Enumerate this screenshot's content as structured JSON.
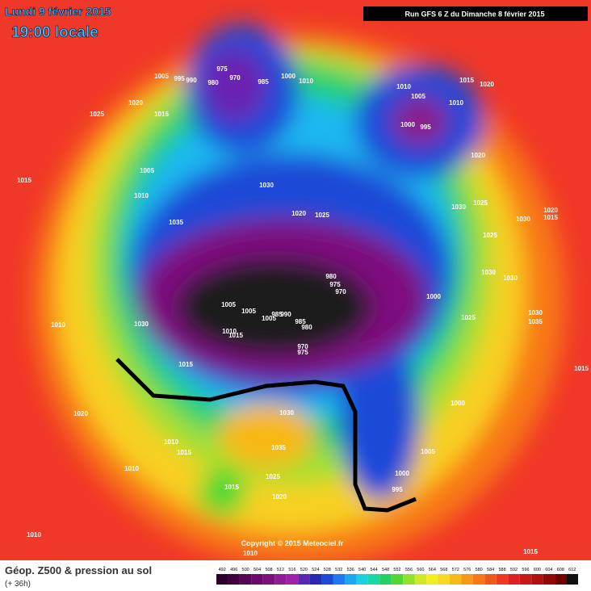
{
  "header": {
    "date": "Lundi 9 février 2015",
    "time": "19:00 locale",
    "run": "Run GFS 6 Z du Dimanche 8 février 2015"
  },
  "isobar_labels": [
    1005,
    995,
    990,
    980,
    975,
    970,
    985,
    1000,
    1010,
    1020,
    1025,
    1015,
    1005,
    1010,
    1015,
    1030,
    1035,
    1020,
    1025,
    1010,
    1005,
    1010,
    1015,
    1020,
    1000,
    995,
    1020,
    1030,
    1025,
    1030,
    1020,
    1015,
    1025,
    1030,
    1030,
    980,
    975,
    970,
    1000,
    1005,
    1005,
    985,
    990,
    985,
    980,
    1010,
    1015,
    1005,
    1030,
    1010,
    1025,
    1030,
    1035,
    1015,
    970,
    975,
    1015,
    1000,
    1030,
    1020,
    1010,
    1015,
    1035,
    1005,
    1010,
    1025,
    1000,
    995,
    1015,
    1020,
    1010,
    1010,
    1015
  ],
  "copyright": "Copyright © 2015 Meteociel.fr",
  "legend": {
    "title": "Géop. Z500 & pression au sol",
    "lead": "(+ 36h)",
    "levels": [
      492,
      496,
      500,
      504,
      508,
      512,
      516,
      520,
      524,
      528,
      532,
      536,
      540,
      544,
      548,
      552,
      556,
      560,
      564,
      568,
      572,
      576,
      580,
      584,
      588,
      592,
      596,
      600,
      604,
      608,
      612
    ],
    "colors": [
      "#2a002a",
      "#400040",
      "#560656",
      "#6a0a6a",
      "#7e107e",
      "#921a92",
      "#a020a8",
      "#5a28b0",
      "#2828b4",
      "#1a48d8",
      "#1e78f0",
      "#1aa8f0",
      "#1ad0e0",
      "#18d8a8",
      "#20d060",
      "#50d830",
      "#90e030",
      "#d0e828",
      "#f0f020",
      "#f8d820",
      "#f8b818",
      "#f89818",
      "#f87818",
      "#f05818",
      "#f03820",
      "#e02020",
      "#c81818",
      "#b01010",
      "#900808",
      "#700000",
      "#101010"
    ]
  }
}
